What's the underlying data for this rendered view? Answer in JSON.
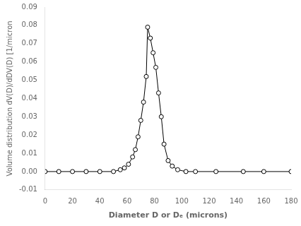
{
  "chart_data": {
    "type": "line",
    "xlabel": "Diameter D or Dₑ (microns)",
    "ylabel": "Volume distribution dV(D)/dDV(D) [1/micron",
    "x": [
      0,
      10,
      20,
      30,
      40,
      50,
      55,
      58,
      61,
      64,
      66,
      68,
      70,
      72,
      74,
      75,
      77,
      79,
      81,
      83,
      85,
      87,
      90,
      93,
      97,
      103,
      110,
      125,
      145,
      160,
      180
    ],
    "values": [
      0.0,
      0.0,
      0.0,
      0.0,
      0.0,
      0.0,
      0.001,
      0.002,
      0.004,
      0.008,
      0.012,
      0.019,
      0.028,
      0.038,
      0.052,
      0.079,
      0.073,
      0.065,
      0.057,
      0.043,
      0.03,
      0.015,
      0.006,
      0.003,
      0.001,
      0.0,
      0.0,
      0.0,
      0.0,
      0.0,
      0.0
    ],
    "color": "#000000",
    "marker": "open_circle",
    "xlim": [
      0,
      180
    ],
    "ylim": [
      -0.01,
      0.09
    ],
    "xticks": [
      0,
      20,
      40,
      60,
      80,
      100,
      120,
      140,
      160,
      180
    ],
    "yticks": [
      -0.01,
      {
        "value": 0,
        "label": "0.00"
      },
      0.01,
      0.02,
      0.03,
      0.04,
      0.05,
      0.06,
      0.07,
      0.08,
      0.09
    ],
    "grid": false
  }
}
